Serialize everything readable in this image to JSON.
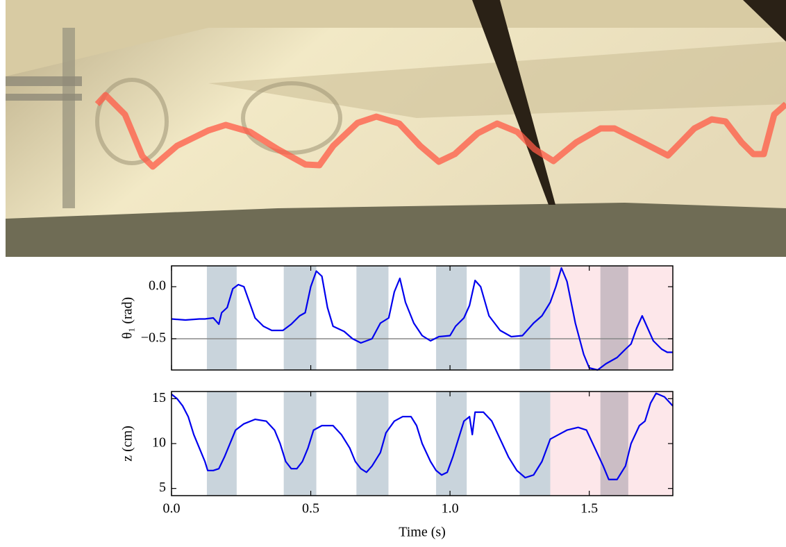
{
  "chart_data": [
    {
      "type": "line",
      "ylabel": "θ₁ (rad)",
      "xlim": [
        0,
        1.8
      ],
      "xticks": [
        0,
        0.5,
        1,
        1.5
      ],
      "ylim": [
        -0.8,
        0.2
      ],
      "yticks": [
        {
          "value": 0,
          "label": "0.0"
        },
        {
          "value": -0.5,
          "label": "−0.5"
        }
      ],
      "hline": -0.5,
      "spans": [
        {
          "x": [
            0.127,
            0.234
          ],
          "color": "#c9d4dc"
        },
        {
          "x": [
            0.403,
            0.52
          ],
          "color": "#c9d4dc"
        },
        {
          "x": [
            0.664,
            0.779
          ],
          "color": "#c9d4dc"
        },
        {
          "x": [
            0.95,
            1.06
          ],
          "color": "#c9d4dc"
        },
        {
          "x": [
            1.25,
            1.36
          ],
          "color": "#c9d4dc"
        },
        {
          "x": [
            1.36,
            1.8
          ],
          "color": "#fde7ea"
        },
        {
          "x": [
            1.54,
            1.64
          ],
          "color": "#cbbdc5"
        }
      ],
      "series": [
        {
          "color": "#0000ee",
          "x": [
            0,
            0.05,
            0.1,
            0.12,
            0.15,
            0.17,
            0.18,
            0.2,
            0.22,
            0.24,
            0.26,
            0.28,
            0.3,
            0.33,
            0.36,
            0.4,
            0.43,
            0.46,
            0.48,
            0.5,
            0.52,
            0.54,
            0.56,
            0.58,
            0.62,
            0.65,
            0.68,
            0.72,
            0.75,
            0.78,
            0.8,
            0.82,
            0.84,
            0.87,
            0.9,
            0.93,
            0.96,
            1.0,
            1.02,
            1.05,
            1.07,
            1.09,
            1.11,
            1.14,
            1.18,
            1.22,
            1.26,
            1.3,
            1.33,
            1.36,
            1.38,
            1.4,
            1.42,
            1.45,
            1.48,
            1.5,
            1.53,
            1.56,
            1.6,
            1.63,
            1.65,
            1.67,
            1.69,
            1.71,
            1.73,
            1.76,
            1.78,
            1.8
          ],
          "values": [
            -0.31,
            -0.32,
            -0.31,
            -0.31,
            -0.3,
            -0.36,
            -0.25,
            -0.2,
            -0.02,
            0.02,
            0.0,
            -0.15,
            -0.3,
            -0.38,
            -0.42,
            -0.42,
            -0.36,
            -0.28,
            -0.25,
            0.0,
            0.15,
            0.1,
            -0.2,
            -0.38,
            -0.43,
            -0.5,
            -0.54,
            -0.5,
            -0.35,
            -0.3,
            -0.05,
            0.08,
            -0.15,
            -0.35,
            -0.47,
            -0.52,
            -0.48,
            -0.47,
            -0.38,
            -0.3,
            -0.18,
            0.06,
            0.0,
            -0.28,
            -0.42,
            -0.48,
            -0.47,
            -0.35,
            -0.28,
            -0.15,
            0.0,
            0.18,
            0.05,
            -0.35,
            -0.65,
            -0.78,
            -0.8,
            -0.74,
            -0.68,
            -0.6,
            -0.55,
            -0.4,
            -0.28,
            -0.4,
            -0.52,
            -0.6,
            -0.63,
            -0.63
          ]
        }
      ]
    },
    {
      "type": "line",
      "ylabel": "z (cm)",
      "xlabel": "Time (s)",
      "xlim": [
        0,
        1.8
      ],
      "xticks": [
        {
          "value": 0,
          "label": "0.0"
        },
        {
          "value": 0.5,
          "label": "0.5"
        },
        {
          "value": 1,
          "label": "1.0"
        },
        {
          "value": 1.5,
          "label": "1.5"
        }
      ],
      "ylim": [
        4.2,
        15.8
      ],
      "yticks": [
        5,
        10,
        15
      ],
      "spans": [
        {
          "x": [
            0.127,
            0.234
          ],
          "color": "#c9d4dc"
        },
        {
          "x": [
            0.403,
            0.52
          ],
          "color": "#c9d4dc"
        },
        {
          "x": [
            0.664,
            0.779
          ],
          "color": "#c9d4dc"
        },
        {
          "x": [
            0.95,
            1.06
          ],
          "color": "#c9d4dc"
        },
        {
          "x": [
            1.25,
            1.36
          ],
          "color": "#c9d4dc"
        },
        {
          "x": [
            1.36,
            1.8
          ],
          "color": "#fde7ea"
        },
        {
          "x": [
            1.54,
            1.64
          ],
          "color": "#cbbdc5"
        }
      ],
      "series": [
        {
          "color": "#0000ee",
          "x": [
            0,
            0.02,
            0.04,
            0.06,
            0.08,
            0.1,
            0.12,
            0.13,
            0.15,
            0.17,
            0.19,
            0.21,
            0.23,
            0.26,
            0.3,
            0.34,
            0.37,
            0.39,
            0.41,
            0.43,
            0.45,
            0.47,
            0.49,
            0.51,
            0.54,
            0.58,
            0.61,
            0.64,
            0.66,
            0.68,
            0.7,
            0.72,
            0.75,
            0.77,
            0.8,
            0.83,
            0.86,
            0.88,
            0.9,
            0.93,
            0.95,
            0.97,
            0.99,
            1.01,
            1.03,
            1.05,
            1.07,
            1.08,
            1.09,
            1.12,
            1.15,
            1.18,
            1.21,
            1.24,
            1.27,
            1.3,
            1.33,
            1.36,
            1.39,
            1.42,
            1.46,
            1.49,
            1.52,
            1.55,
            1.57,
            1.6,
            1.63,
            1.65,
            1.68,
            1.7,
            1.72,
            1.74,
            1.77,
            1.8
          ],
          "values": [
            15.5,
            15,
            14.2,
            13,
            11,
            9.5,
            8,
            7,
            7,
            7.2,
            8.5,
            10,
            11.5,
            12.2,
            12.7,
            12.5,
            11.5,
            10,
            8,
            7.2,
            7.2,
            8,
            9.5,
            11.5,
            12,
            12,
            11,
            9.5,
            8,
            7.2,
            6.8,
            7.5,
            9,
            11.2,
            12.5,
            13,
            13,
            12,
            10,
            8,
            7,
            6.5,
            6.8,
            8.5,
            10.5,
            12.5,
            13,
            11,
            13.5,
            13.5,
            12.5,
            10.5,
            8.5,
            7,
            6.2,
            6.5,
            8,
            10.5,
            11,
            11.5,
            11.8,
            11.5,
            9.5,
            7.5,
            6,
            6,
            7.5,
            10,
            12,
            12.5,
            14.5,
            15.6,
            15.2,
            14.2
          ]
        }
      ]
    }
  ]
}
